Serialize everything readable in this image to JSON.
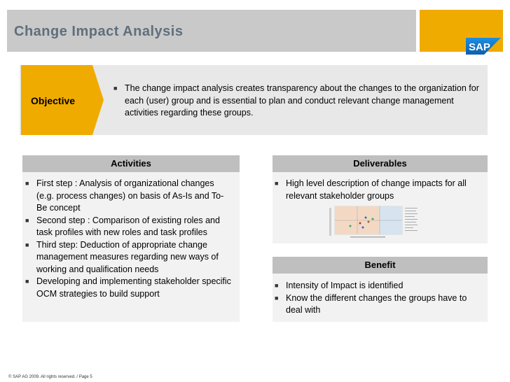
{
  "header": {
    "title": "Change Impact Analysis",
    "logo_text": "SAP"
  },
  "objective": {
    "label": "Objective",
    "items": [
      "The change impact analysis creates transparency about the changes to the organization for each (user) group and is essential to plan and conduct relevant change management activities regarding these groups."
    ]
  },
  "activities": {
    "heading": "Activities",
    "items": [
      "First step : Analysis of organizational changes (e.g. process changes) on basis of As-Is and To-Be concept",
      "Second step : Comparison of existing roles and task profiles with new roles and task profiles",
      "Third step: Deduction of appropriate change management measures regarding new ways of working and qualification needs",
      "Developing and implementing stakeholder specific OCM strategies to build support"
    ]
  },
  "deliverables": {
    "heading": "Deliverables",
    "items": [
      "High level description of change impacts for all relevant stakeholder groups"
    ]
  },
  "benefit": {
    "heading": "Benefit",
    "items": [
      "Intensity of Impact is identified",
      "Know the different changes the groups have to deal with"
    ]
  },
  "footer": {
    "text": "© SAP AG 2009. All rights reserved. / Page 5"
  },
  "colors": {
    "accent": "#f0ab00",
    "title": "#5f6f7c",
    "header_bar": "#c9c9c9",
    "card_head": "#bfbfbf"
  }
}
